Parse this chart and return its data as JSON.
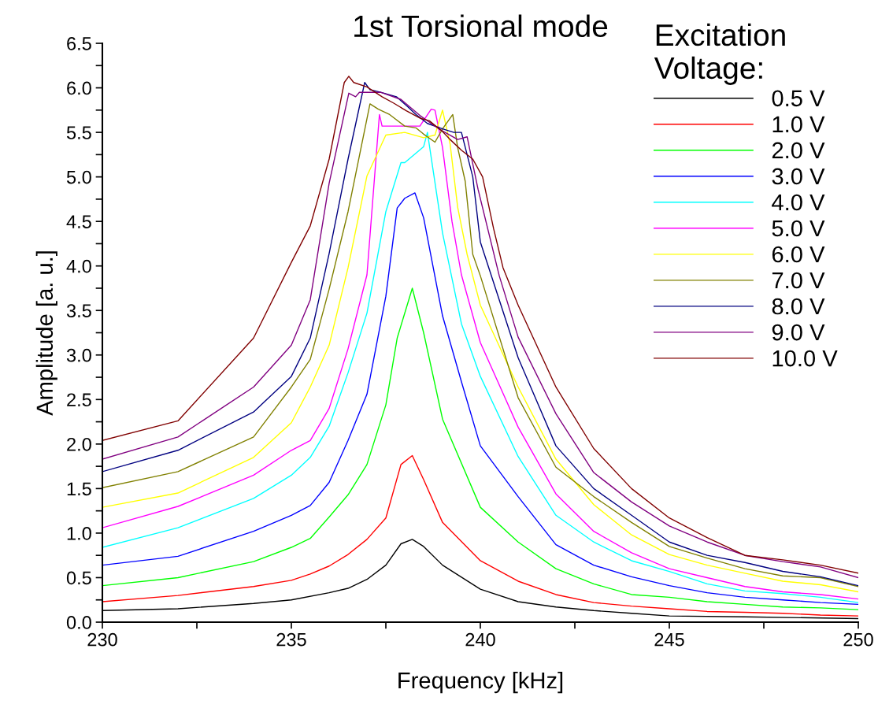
{
  "chart_data": {
    "type": "line",
    "title": "1st Torsional mode",
    "xlabel": "Frequency [kHz]",
    "ylabel": "Amplitude [a. u.]",
    "legend_title": "Excitation\nVoltage:",
    "xlim": [
      230,
      250
    ],
    "ylim": [
      0,
      6.5
    ],
    "xticks": [
      230,
      {
        "value": 232.5,
        "label": null
      },
      235,
      {
        "value": 237.5,
        "label": null
      },
      240,
      {
        "value": 242.5,
        "label": null
      },
      245,
      {
        "value": 247.5,
        "label": null
      },
      250
    ],
    "yticks": [
      {
        "value": 0,
        "label": "0.0"
      },
      {
        "value": 0.25,
        "label": null
      },
      {
        "value": 0.5,
        "label": "0.5"
      },
      {
        "value": 0.75,
        "label": null
      },
      {
        "value": 1,
        "label": "1.0"
      },
      {
        "value": 1.25,
        "label": null
      },
      {
        "value": 1.5,
        "label": "1.5"
      },
      {
        "value": 1.75,
        "label": null
      },
      {
        "value": 2,
        "label": "2.0"
      },
      {
        "value": 2.25,
        "label": null
      },
      {
        "value": 2.5,
        "label": "2.5"
      },
      {
        "value": 2.75,
        "label": null
      },
      {
        "value": 3,
        "label": "3.0"
      },
      {
        "value": 3.25,
        "label": null
      },
      {
        "value": 3.5,
        "label": "3.5"
      },
      {
        "value": 3.75,
        "label": null
      },
      {
        "value": 4,
        "label": "4.0"
      },
      {
        "value": 4.25,
        "label": null
      },
      {
        "value": 4.5,
        "label": "4.5"
      },
      {
        "value": 4.75,
        "label": null
      },
      {
        "value": 5,
        "label": "5.0"
      },
      {
        "value": 5.25,
        "label": null
      },
      {
        "value": 5.5,
        "label": "5.5"
      },
      {
        "value": 5.75,
        "label": null
      },
      {
        "value": 6,
        "label": "6.0"
      },
      {
        "value": 6.25,
        "label": null
      },
      {
        "value": 6.5,
        "label": "6.5"
      }
    ],
    "grid": false,
    "legend": "top right",
    "marker": "none",
    "line_style": "solid",
    "series": [
      {
        "name": "0.5 V",
        "color": "#000000",
        "x": [
          230,
          232,
          234,
          235,
          236,
          236.5,
          237,
          237.5,
          237.9,
          238.2,
          238.5,
          239,
          240,
          241,
          242,
          243,
          244,
          245,
          247,
          250
        ],
        "values": [
          0.13,
          0.15,
          0.21,
          0.25,
          0.33,
          0.38,
          0.48,
          0.64,
          0.88,
          0.93,
          0.85,
          0.64,
          0.37,
          0.23,
          0.17,
          0.13,
          0.1,
          0.07,
          0.06,
          0.04
        ]
      },
      {
        "name": "1.0 V",
        "color": "#ff0000",
        "x": [
          230,
          232,
          234,
          235,
          235.5,
          236,
          236.5,
          237,
          237.5,
          237.9,
          238.2,
          238.5,
          239,
          240,
          241,
          242,
          243,
          244,
          245,
          246,
          247,
          248,
          249,
          250
        ],
        "values": [
          0.23,
          0.3,
          0.4,
          0.47,
          0.54,
          0.63,
          0.76,
          0.93,
          1.17,
          1.77,
          1.87,
          1.6,
          1.12,
          0.69,
          0.46,
          0.31,
          0.22,
          0.18,
          0.15,
          0.12,
          0.11,
          0.1,
          0.08,
          0.07
        ]
      },
      {
        "name": "2.0 V",
        "color": "#00ff00",
        "x": [
          230,
          232,
          234,
          235,
          235.5,
          236,
          236.5,
          237,
          237.5,
          237.8,
          238.2,
          238.5,
          239,
          240,
          241,
          242,
          243,
          244,
          245,
          246,
          247,
          248,
          249,
          250
        ],
        "values": [
          0.41,
          0.5,
          0.68,
          0.84,
          0.94,
          1.18,
          1.43,
          1.77,
          2.44,
          3.19,
          3.75,
          3.25,
          2.28,
          1.29,
          0.9,
          0.6,
          0.43,
          0.31,
          0.28,
          0.23,
          0.2,
          0.17,
          0.16,
          0.14
        ]
      },
      {
        "name": "3.0 V",
        "color": "#0000ff",
        "x": [
          230,
          232,
          234,
          235,
          235.5,
          236,
          236.5,
          237,
          237.5,
          237.8,
          238,
          238.27,
          238.5,
          239,
          239.5,
          240,
          241,
          242,
          243,
          244,
          245,
          246,
          247,
          248,
          249,
          250
        ],
        "values": [
          0.64,
          0.74,
          1.02,
          1.2,
          1.31,
          1.57,
          2.04,
          2.56,
          3.66,
          4.65,
          4.76,
          4.82,
          4.54,
          3.44,
          2.7,
          1.98,
          1.41,
          0.87,
          0.64,
          0.51,
          0.41,
          0.33,
          0.28,
          0.25,
          0.22,
          0.2
        ]
      },
      {
        "name": "4.0 V",
        "color": "#00ffff",
        "x": [
          230,
          232,
          234,
          235,
          235.5,
          236,
          236.5,
          237,
          237.5,
          237.9,
          238,
          238.5,
          238.6,
          239,
          239.5,
          240,
          241,
          242,
          243,
          244,
          245,
          246,
          247,
          248,
          249,
          250
        ],
        "values": [
          0.84,
          1.06,
          1.39,
          1.65,
          1.85,
          2.2,
          2.8,
          3.47,
          4.61,
          5.16,
          5.16,
          5.34,
          5.5,
          4.37,
          3.35,
          2.76,
          1.86,
          1.2,
          0.9,
          0.69,
          0.57,
          0.43,
          0.35,
          0.32,
          0.28,
          0.22
        ]
      },
      {
        "name": "5.0 V",
        "color": "#ff00ff",
        "x": [
          230,
          232,
          234,
          235,
          235.5,
          236,
          236.5,
          237,
          237.33,
          237.4,
          237.7,
          238.4,
          238.7,
          238.8,
          239,
          239.25,
          239.5,
          240,
          241,
          242,
          243,
          244,
          245,
          246,
          247,
          248,
          249,
          250
        ],
        "values": [
          1.06,
          1.3,
          1.65,
          1.93,
          2.04,
          2.4,
          3.07,
          3.9,
          5.7,
          5.57,
          5.57,
          5.57,
          5.76,
          5.75,
          5.33,
          4.5,
          3.9,
          3.14,
          2.19,
          1.44,
          1.02,
          0.78,
          0.6,
          0.5,
          0.4,
          0.34,
          0.31,
          0.26
        ]
      },
      {
        "name": "6.0 V",
        "color": "#ffff00",
        "x": [
          230,
          232,
          234,
          235,
          235.5,
          236,
          236.5,
          237,
          237.5,
          238,
          238.5,
          238.8,
          239,
          239.2,
          239.4,
          239.65,
          240,
          241,
          242,
          243,
          244,
          245,
          246,
          247,
          248,
          249,
          250
        ],
        "values": [
          1.29,
          1.45,
          1.85,
          2.24,
          2.64,
          3.11,
          3.98,
          5.01,
          5.47,
          5.5,
          5.44,
          5.47,
          5.75,
          5.37,
          4.66,
          4.13,
          3.56,
          2.64,
          1.83,
          1.32,
          0.98,
          0.76,
          0.64,
          0.55,
          0.46,
          0.42,
          0.34
        ]
      },
      {
        "name": "7.0 V",
        "color": "#808000",
        "x": [
          230,
          232,
          234,
          235,
          235.5,
          236,
          236.5,
          237.08,
          237.3,
          237.6,
          238,
          238.3,
          238.5,
          238.8,
          239,
          239.27,
          239.4,
          239.6,
          239.8,
          240,
          241,
          242,
          243,
          244,
          245,
          246,
          247,
          248,
          249,
          250
        ],
        "values": [
          1.51,
          1.69,
          2.08,
          2.64,
          2.95,
          3.74,
          4.61,
          5.82,
          5.76,
          5.7,
          5.57,
          5.55,
          5.48,
          5.39,
          5.54,
          5.7,
          5.33,
          4.95,
          4.13,
          3.89,
          2.52,
          1.74,
          1.41,
          1.12,
          0.85,
          0.72,
          0.6,
          0.52,
          0.5,
          0.4
        ]
      },
      {
        "name": "8.0 V",
        "color": "#000080",
        "x": [
          230,
          232,
          234,
          235,
          235.5,
          236,
          236.5,
          236.94,
          237.08,
          237.36,
          237.78,
          238.05,
          238.3,
          238.6,
          239,
          239.3,
          239.5,
          239.8,
          240,
          241,
          242,
          243,
          244,
          245,
          246,
          247,
          248,
          249,
          250
        ],
        "values": [
          1.69,
          1.93,
          2.36,
          2.76,
          3.19,
          4.14,
          5.2,
          6.06,
          5.98,
          5.95,
          5.9,
          5.8,
          5.7,
          5.6,
          5.54,
          5.5,
          5.5,
          5.0,
          4.27,
          2.97,
          1.98,
          1.5,
          1.2,
          0.9,
          0.75,
          0.67,
          0.57,
          0.51,
          0.41
        ]
      },
      {
        "name": "9.0 V",
        "color": "#800080",
        "x": [
          230,
          232,
          234,
          235,
          235.5,
          236,
          236.52,
          236.7,
          236.8,
          237.36,
          237.9,
          238.4,
          238.9,
          239.4,
          239.65,
          239.94,
          240.5,
          241,
          242,
          243,
          244,
          245,
          246,
          247,
          248,
          249,
          250
        ],
        "values": [
          1.83,
          2.08,
          2.64,
          3.11,
          3.62,
          4.93,
          5.94,
          5.9,
          5.95,
          5.95,
          5.87,
          5.69,
          5.54,
          5.42,
          5.45,
          4.86,
          3.89,
          3.2,
          2.34,
          1.68,
          1.35,
          1.08,
          0.9,
          0.75,
          0.68,
          0.62,
          0.5
        ]
      },
      {
        "name": "10.0 V",
        "color": "#800000",
        "x": [
          230,
          232,
          234,
          235,
          235.5,
          236,
          236.4,
          236.52,
          236.65,
          237,
          237.4,
          237.7,
          238.05,
          238.4,
          238.65,
          239,
          239.2,
          239.5,
          239.8,
          240.06,
          240.35,
          240.6,
          241,
          242,
          243,
          244,
          245,
          246,
          247,
          248,
          249,
          250
        ],
        "values": [
          2.04,
          2.26,
          3.19,
          4.04,
          4.45,
          5.2,
          6.06,
          6.13,
          6.06,
          6.01,
          5.9,
          5.83,
          5.74,
          5.66,
          5.63,
          5.51,
          5.42,
          5.3,
          5.2,
          5.0,
          4.42,
          3.98,
          3.56,
          2.64,
          1.95,
          1.5,
          1.17,
          0.95,
          0.75,
          0.7,
          0.64,
          0.55
        ]
      }
    ]
  }
}
